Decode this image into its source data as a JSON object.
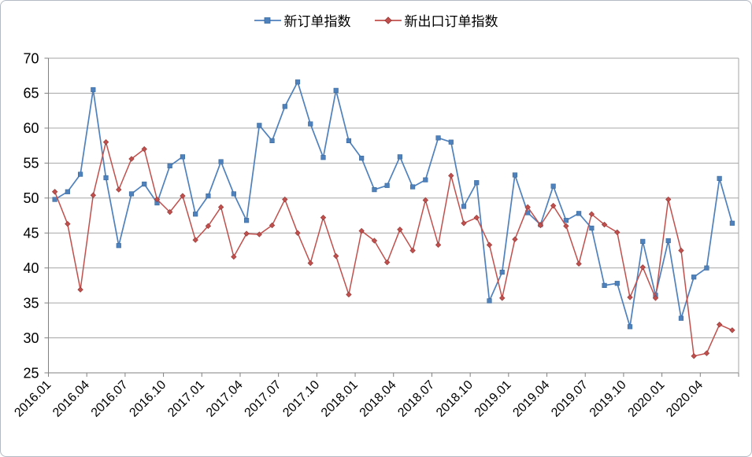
{
  "chart_data": {
    "type": "line",
    "title": "",
    "xlabel": "",
    "ylabel": "",
    "ylim": [
      25,
      70
    ],
    "y_ticks": [
      25,
      30,
      35,
      40,
      45,
      50,
      55,
      60,
      65,
      70
    ],
    "x_tick_every": 3,
    "grid": true,
    "legend_position": "top-center",
    "categories": [
      "2016.01",
      "2016.02",
      "2016.03",
      "2016.04",
      "2016.05",
      "2016.06",
      "2016.07",
      "2016.08",
      "2016.09",
      "2016.10",
      "2016.11",
      "2016.12",
      "2017.01",
      "2017.02",
      "2017.03",
      "2017.04",
      "2017.05",
      "2017.06",
      "2017.07",
      "2017.08",
      "2017.09",
      "2017.10",
      "2017.11",
      "2017.12",
      "2018.01",
      "2018.02",
      "2018.03",
      "2018.04",
      "2018.05",
      "2018.06",
      "2018.07",
      "2018.08",
      "2018.09",
      "2018.10",
      "2018.11",
      "2018.12",
      "2019.01",
      "2019.02",
      "2019.03",
      "2019.04",
      "2019.05",
      "2019.06",
      "2019.07",
      "2019.08",
      "2019.09",
      "2019.10",
      "2019.11",
      "2019.12",
      "2020.01",
      "2020.02",
      "2020.03",
      "2020.04",
      "2020.05",
      "2020.06"
    ],
    "series": [
      {
        "name": "新订单指数",
        "color": "#4F81BD",
        "marker": "square",
        "values": [
          49.8,
          50.9,
          53.4,
          65.5,
          52.9,
          43.2,
          50.6,
          52.0,
          49.3,
          54.6,
          55.9,
          47.7,
          50.3,
          55.2,
          50.6,
          46.8,
          60.4,
          58.2,
          63.1,
          66.6,
          60.6,
          55.8,
          65.4,
          58.2,
          55.7,
          51.2,
          51.8,
          55.9,
          51.6,
          52.6,
          58.6,
          58.0,
          48.8,
          52.2,
          35.3,
          39.4,
          53.3,
          47.9,
          46.2,
          51.7,
          46.8,
          47.8,
          45.7,
          37.5,
          37.8,
          31.6,
          43.8,
          36.1,
          43.9,
          32.8,
          38.7,
          40.0,
          52.8,
          46.4
        ]
      },
      {
        "name": "新出口订单指数",
        "color": "#C0504D",
        "marker": "diamond",
        "values": [
          50.9,
          46.3,
          36.9,
          50.4,
          58.0,
          51.2,
          55.6,
          57.0,
          49.8,
          48.0,
          50.3,
          44.0,
          46.0,
          48.7,
          41.6,
          44.9,
          44.8,
          46.1,
          49.8,
          45.0,
          40.7,
          47.2,
          41.7,
          36.2,
          45.3,
          43.9,
          40.8,
          45.5,
          42.5,
          49.7,
          43.3,
          53.2,
          46.4,
          47.2,
          43.3,
          35.7,
          44.1,
          48.7,
          46.1,
          48.9,
          46.0,
          40.6,
          47.7,
          46.2,
          45.1,
          35.8,
          40.1,
          35.7,
          49.8,
          42.5,
          27.4,
          27.8,
          31.9,
          31.1
        ]
      }
    ],
    "colors": {
      "gridline": "#A6A6A6",
      "axis": "#808080",
      "text": "#000000",
      "background": "#FFFFFF"
    }
  }
}
